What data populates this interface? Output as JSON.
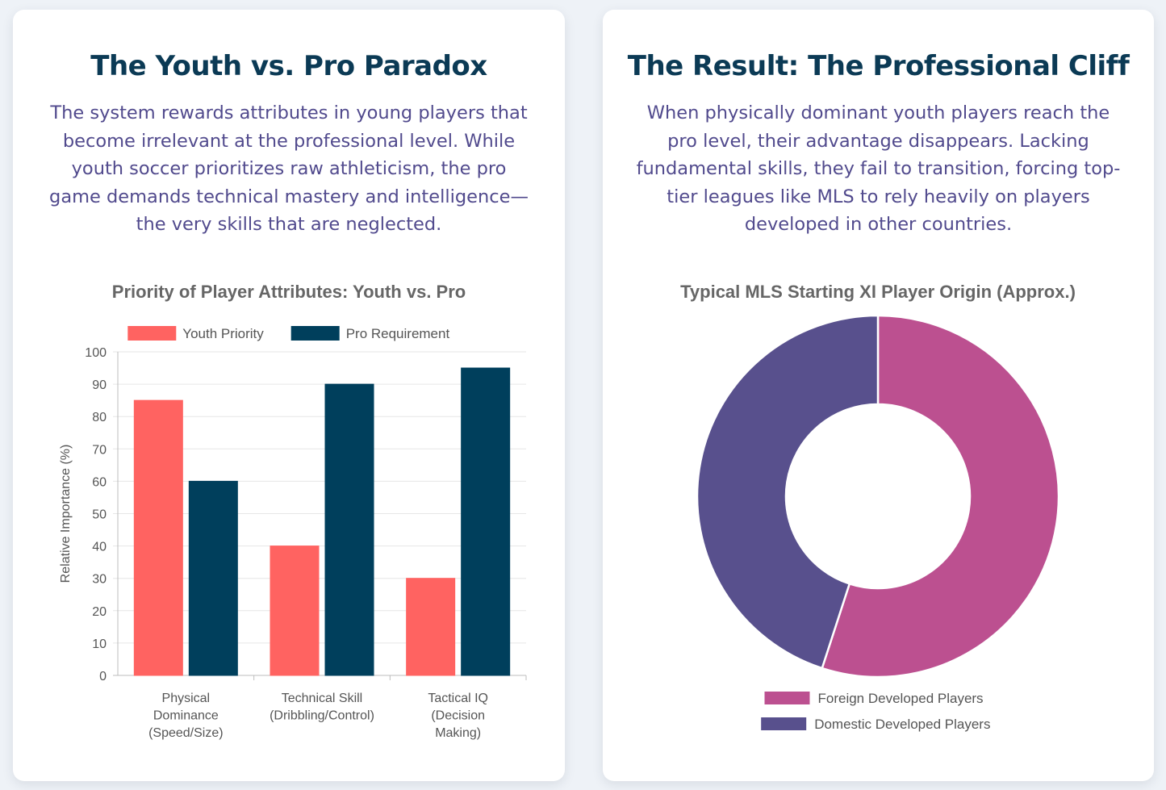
{
  "left_card": {
    "title": "The Youth vs. Pro Paradox",
    "description": "The system rewards attributes in young players that become irrelevant at the professional level. While youth soccer prioritizes raw athleticism, the pro game demands technical mastery and intelligence—the very skills that are neglected."
  },
  "right_card": {
    "title": "The Result: The Professional Cliff",
    "description": "When physically dominant youth players reach the pro level, their advantage disappears. Lacking fundamental skills, they fail to transition, forcing top-tier leagues like MLS to rely heavily on players developed in other countries."
  },
  "chart_data": [
    {
      "type": "bar",
      "title": "Priority of Player Attributes: Youth vs. Pro",
      "categories": [
        [
          "Physical",
          "Dominance",
          "(Speed/Size)"
        ],
        [
          "Technical Skill",
          "(Dribbling/Control)"
        ],
        [
          "Tactical IQ",
          "(Decision",
          "Making)"
        ]
      ],
      "series": [
        {
          "name": "Youth Priority",
          "values": [
            85,
            40,
            30
          ],
          "color": "#ff6361"
        },
        {
          "name": "Pro Requirement",
          "values": [
            60,
            90,
            95
          ],
          "color": "#003f5c"
        }
      ],
      "xlabel": "",
      "ylabel": "Relative Importance (%)",
      "ylim": [
        0,
        100
      ],
      "yticks": [
        0,
        10,
        20,
        30,
        40,
        50,
        60,
        70,
        80,
        90,
        100
      ],
      "grid": true,
      "legend": "top"
    },
    {
      "type": "pie",
      "variant": "doughnut",
      "title": "Typical MLS Starting XI Player Origin (Approx.)",
      "labels": [
        "Foreign Developed Players",
        "Domestic Developed Players"
      ],
      "values": [
        55,
        45
      ],
      "colors": [
        "#bc5090",
        "#58508d"
      ],
      "legend": "bottom"
    }
  ]
}
